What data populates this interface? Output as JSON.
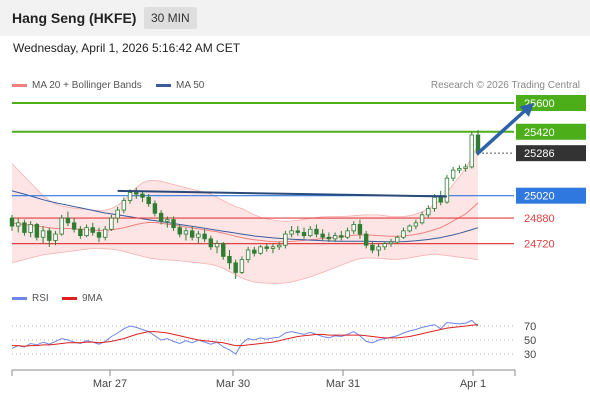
{
  "header": {
    "title": "Hang Seng (HKFE)",
    "timeframe": "30 MIN"
  },
  "datetime": "Wednesday, April 1, 2026 5:16:42 AM CET",
  "legend": {
    "ma20_label": "MA 20 + Bollinger Bands",
    "ma50_label": "MA 50",
    "copyright": "Research © 2026 Trading Central"
  },
  "rsi_legend": {
    "rsi_label": "RSI",
    "ma9_label": "9MA"
  },
  "colors": {
    "candle": "#2e7d32",
    "ma20": "#f08080",
    "bollinger_fill": "#fde0e0",
    "ma50": "#3a5a9a",
    "resistance": "#4caf1a",
    "pivot": "#2f78e0",
    "support": "#e04040",
    "trendline": "#2a4a7a",
    "arrow": "#2e62a8",
    "rsi": "#6f86e6",
    "rsi_ma": "#e02020"
  },
  "chart_data": [
    {
      "type": "candlestick",
      "x_labels": [
        "Mar 27",
        "Mar 30",
        "Mar 31",
        "Apr 1"
      ],
      "y_range": [
        24480,
        25650
      ],
      "grid": false,
      "ohlc": [
        [
          24880,
          24900,
          24800,
          24830
        ],
        [
          24830,
          24880,
          24790,
          24850
        ],
        [
          24850,
          24870,
          24770,
          24790
        ],
        [
          24790,
          24860,
          24760,
          24840
        ],
        [
          24840,
          24850,
          24740,
          24760
        ],
        [
          24760,
          24830,
          24720,
          24800
        ],
        [
          24800,
          24820,
          24700,
          24740
        ],
        [
          24740,
          24800,
          24710,
          24780
        ],
        [
          24780,
          24900,
          24770,
          24880
        ],
        [
          24880,
          24920,
          24830,
          24850
        ],
        [
          24850,
          24880,
          24790,
          24810
        ],
        [
          24810,
          24830,
          24750,
          24770
        ],
        [
          24770,
          24840,
          24760,
          24820
        ],
        [
          24820,
          24850,
          24770,
          24790
        ],
        [
          24790,
          24820,
          24730,
          24760
        ],
        [
          24760,
          24830,
          24740,
          24810
        ],
        [
          24810,
          24900,
          24800,
          24880
        ],
        [
          24880,
          24950,
          24850,
          24930
        ],
        [
          24930,
          25010,
          24910,
          24990
        ],
        [
          24990,
          25060,
          24970,
          25040
        ],
        [
          25040,
          25070,
          25000,
          25030
        ],
        [
          25030,
          25050,
          24980,
          25010
        ],
        [
          25010,
          25030,
          24950,
          24970
        ],
        [
          24970,
          24990,
          24890,
          24910
        ],
        [
          24910,
          24930,
          24840,
          24860
        ],
        [
          24860,
          24890,
          24820,
          24870
        ],
        [
          24870,
          24890,
          24800,
          24820
        ],
        [
          24820,
          24840,
          24760,
          24780
        ],
        [
          24780,
          24820,
          24740,
          24800
        ],
        [
          24800,
          24830,
          24740,
          24760
        ],
        [
          24760,
          24800,
          24720,
          24780
        ],
        [
          24780,
          24810,
          24730,
          24750
        ],
        [
          24750,
          24770,
          24680,
          24700
        ],
        [
          24700,
          24740,
          24660,
          24720
        ],
        [
          24720,
          24730,
          24620,
          24640
        ],
        [
          24640,
          24680,
          24560,
          24600
        ],
        [
          24600,
          24620,
          24500,
          24540
        ],
        [
          24540,
          24640,
          24530,
          24620
        ],
        [
          24620,
          24700,
          24600,
          24680
        ],
        [
          24680,
          24700,
          24640,
          24660
        ],
        [
          24660,
          24710,
          24650,
          24700
        ],
        [
          24700,
          24720,
          24670,
          24690
        ],
        [
          24690,
          24720,
          24660,
          24700
        ],
        [
          24700,
          24730,
          24680,
          24710
        ],
        [
          24710,
          24800,
          24690,
          24780
        ],
        [
          24780,
          24830,
          24760,
          24800
        ],
        [
          24800,
          24830,
          24770,
          24790
        ],
        [
          24790,
          24820,
          24750,
          24770
        ],
        [
          24770,
          24830,
          24760,
          24810
        ],
        [
          24810,
          24840,
          24760,
          24780
        ],
        [
          24780,
          24810,
          24740,
          24760
        ],
        [
          24760,
          24790,
          24730,
          24750
        ],
        [
          24750,
          24790,
          24730,
          24770
        ],
        [
          24770,
          24800,
          24740,
          24760
        ],
        [
          24760,
          24820,
          24750,
          24800
        ],
        [
          24800,
          24860,
          24780,
          24840
        ],
        [
          24840,
          24870,
          24750,
          24780
        ],
        [
          24780,
          24800,
          24690,
          24710
        ],
        [
          24710,
          24730,
          24660,
          24680
        ],
        [
          24680,
          24720,
          24640,
          24700
        ],
        [
          24700,
          24730,
          24680,
          24720
        ],
        [
          24720,
          24750,
          24700,
          24730
        ],
        [
          24730,
          24770,
          24720,
          24760
        ],
        [
          24760,
          24820,
          24750,
          24800
        ],
        [
          24800,
          24840,
          24790,
          24830
        ],
        [
          24830,
          24870,
          24810,
          24850
        ],
        [
          24850,
          24920,
          24840,
          24900
        ],
        [
          24900,
          24960,
          24880,
          24940
        ],
        [
          24940,
          25030,
          24920,
          25010
        ],
        [
          25010,
          25050,
          24960,
          24980
        ],
        [
          24980,
          25150,
          24970,
          25130
        ],
        [
          25130,
          25200,
          25110,
          25180
        ],
        [
          25180,
          25210,
          25160,
          25190
        ],
        [
          25190,
          25220,
          25170,
          25200
        ],
        [
          25200,
          25420,
          25190,
          25400
        ],
        [
          25400,
          25430,
          25270,
          25290
        ]
      ],
      "ma20": [
        24850,
        24845,
        24840,
        24835,
        24830,
        24825,
        24820,
        24815,
        24815,
        24815,
        24812,
        24810,
        24808,
        24805,
        24803,
        24803,
        24806,
        24812,
        24820,
        24830,
        24840,
        24848,
        24852,
        24852,
        24848,
        24842,
        24836,
        24830,
        24824,
        24818,
        24812,
        24806,
        24800,
        24794,
        24786,
        24776,
        24766,
        24758,
        24750,
        24744,
        24740,
        24736,
        24733,
        24732,
        24732,
        24734,
        24737,
        24740,
        24744,
        24748,
        24752,
        24756,
        24760,
        24764,
        24768,
        24772,
        24774,
        24774,
        24772,
        24770,
        24768,
        24766,
        24766,
        24768,
        24772,
        24778,
        24786,
        24796,
        24808,
        24820,
        24840,
        24862,
        24884,
        24906,
        24940,
        24975
      ],
      "bollinger_upper": [
        25220,
        25180,
        25140,
        25100,
        25060,
        25020,
        24990,
        24970,
        24955,
        24948,
        24942,
        24938,
        24934,
        24930,
        24928,
        24930,
        24940,
        24960,
        24990,
        25030,
        25070,
        25100,
        25115,
        25115,
        25110,
        25100,
        25090,
        25080,
        25070,
        25060,
        25050,
        25040,
        25030,
        25010,
        24990,
        24970,
        24950,
        24940,
        24920,
        24900,
        24885,
        24875,
        24868,
        24862,
        24860,
        24862,
        24866,
        24872,
        24878,
        24884,
        24888,
        24890,
        24890,
        24890,
        24892,
        24895,
        24898,
        24900,
        24900,
        24900,
        24895,
        24890,
        24888,
        24890,
        24895,
        24905,
        24920,
        24940,
        24965,
        24995,
        25040,
        25090,
        25140,
        25190,
        25260,
        25340
      ],
      "bollinger_lower": [
        24600,
        24610,
        24620,
        24630,
        24640,
        24650,
        24655,
        24660,
        24665,
        24670,
        24675,
        24680,
        24685,
        24690,
        24690,
        24688,
        24685,
        24680,
        24672,
        24660,
        24650,
        24640,
        24630,
        24625,
        24620,
        24618,
        24615,
        24612,
        24608,
        24604,
        24600,
        24595,
        24590,
        24580,
        24565,
        24545,
        24525,
        24505,
        24490,
        24480,
        24475,
        24473,
        24472,
        24472,
        24474,
        24480,
        24490,
        24500,
        24512,
        24525,
        24540,
        24555,
        24570,
        24585,
        24600,
        24615,
        24625,
        24630,
        24630,
        24628,
        24625,
        24622,
        24622,
        24625,
        24630,
        24638,
        24645,
        24650,
        24655,
        24650,
        24645,
        24640,
        24635,
        24630,
        24625,
        24620
      ],
      "ma50": [
        25050,
        25040,
        25030,
        25018,
        25006,
        24995,
        24985,
        24976,
        24968,
        24960,
        24952,
        24944,
        24936,
        24928,
        24920,
        24912,
        24906,
        24900,
        24894,
        24888,
        24882,
        24876,
        24870,
        24864,
        24858,
        24852,
        24846,
        24840,
        24834,
        24828,
        24822,
        24816,
        24810,
        24804,
        24798,
        24792,
        24786,
        24780,
        24774,
        24768,
        24764,
        24760,
        24756,
        24753,
        24750,
        24748,
        24746,
        24744,
        24742,
        24740,
        24738,
        24737,
        24736,
        24735,
        24735,
        24735,
        24735,
        24735,
        24734,
        24733,
        24732,
        24732,
        24732,
        24733,
        24735,
        24738,
        24742,
        24746,
        24752,
        24758,
        24766,
        24775,
        24785,
        24796,
        24808,
        24820
      ],
      "levels": [
        {
          "value": 25600,
          "label": "25600",
          "kind": "resistance"
        },
        {
          "value": 25420,
          "label": "25420",
          "kind": "resistance"
        },
        {
          "value": 25286,
          "label": "25286",
          "kind": "last"
        },
        {
          "value": 25020,
          "label": "25020",
          "kind": "pivot"
        },
        {
          "value": 24880,
          "label": "24880",
          "kind": "support"
        },
        {
          "value": 24720,
          "label": "24720",
          "kind": "support"
        }
      ],
      "trendline": {
        "from": {
          "index": 17,
          "value": 25050
        },
        "to": {
          "index": 70,
          "value": 25015
        }
      },
      "arrow": {
        "from": {
          "index": 75,
          "value": 25286
        },
        "to": {
          "index": 84,
          "value": 25600
        }
      }
    },
    {
      "type": "line",
      "title": "RSI",
      "y_ticks": [
        70,
        50,
        30
      ],
      "y_range": [
        10,
        90
      ],
      "series": [
        {
          "name": "RSI",
          "values": [
            38,
            42,
            40,
            45,
            43,
            47,
            44,
            48,
            52,
            50,
            47,
            45,
            49,
            47,
            44,
            48,
            55,
            60,
            66,
            70,
            68,
            65,
            62,
            56,
            50,
            52,
            48,
            45,
            49,
            46,
            50,
            47,
            44,
            47,
            40,
            36,
            30,
            45,
            52,
            50,
            53,
            51,
            53,
            54,
            60,
            62,
            60,
            58,
            61,
            58,
            55,
            53,
            56,
            55,
            58,
            62,
            56,
            48,
            46,
            50,
            52,
            54,
            56,
            60,
            63,
            65,
            68,
            70,
            72,
            66,
            75,
            74,
            73,
            74,
            78,
            70
          ]
        },
        {
          "name": "9MA",
          "values": [
            42,
            42,
            41,
            42,
            42,
            43,
            43,
            44,
            45,
            46,
            46,
            46,
            47,
            47,
            46,
            47,
            48,
            50,
            52,
            55,
            58,
            60,
            62,
            62,
            61,
            60,
            58,
            56,
            54,
            52,
            50,
            49,
            48,
            47,
            46,
            44,
            42,
            42,
            43,
            44,
            45,
            46,
            47,
            49,
            51,
            53,
            55,
            56,
            57,
            58,
            58,
            57,
            57,
            57,
            57,
            57,
            57,
            56,
            55,
            54,
            53,
            53,
            53,
            54,
            55,
            57,
            59,
            61,
            63,
            65,
            67,
            68,
            69,
            70,
            71,
            72
          ]
        }
      ]
    }
  ]
}
